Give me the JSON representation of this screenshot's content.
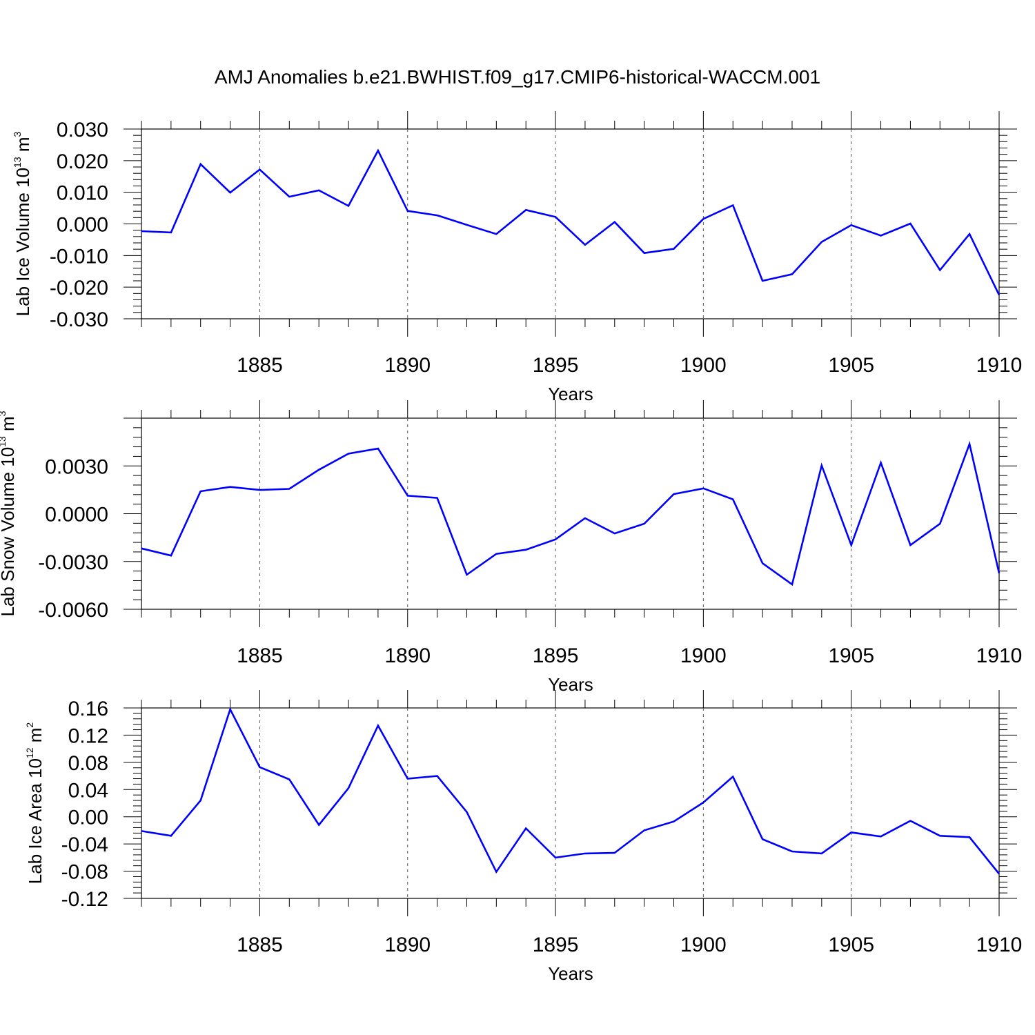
{
  "title": "AMJ Anomalies b.e21.BWHIST.f09_g17.CMIP6-historical-WACCM.001",
  "colors": {
    "line": "#0000ff",
    "axis": "#000000",
    "grid": "#555555"
  },
  "chart_data": [
    {
      "type": "line",
      "xlabel": "Years",
      "ylabel": {
        "prefix": "Lab Ice Volume 10",
        "exponent": "13",
        "unit": " m",
        "unit_exponent": "3"
      },
      "xlim": [
        1881,
        1910
      ],
      "ylim": [
        -0.03,
        0.03
      ],
      "xticks": [
        1885,
        1890,
        1895,
        1900,
        1905,
        1910
      ],
      "xtick_labels": [
        "1885",
        "1890",
        "1895",
        "1900",
        "1905",
        "1910"
      ],
      "yticks": [
        -0.03,
        -0.02,
        -0.01,
        0.0,
        0.01,
        0.02,
        0.03
      ],
      "ytick_labels": [
        "-0.030",
        "-0.020",
        "-0.010",
        "0.000",
        "0.010",
        "0.020",
        "0.030"
      ],
      "grid": "vertical-dashed",
      "series": [
        {
          "x": [
            1881,
            1882,
            1883,
            1884,
            1885,
            1886,
            1887,
            1888,
            1889,
            1890,
            1891,
            1892,
            1893,
            1894,
            1895,
            1896,
            1897,
            1898,
            1899,
            1900,
            1901,
            1902,
            1903,
            1904,
            1905,
            1906,
            1907,
            1908,
            1909,
            1910
          ],
          "values": [
            -0.0023,
            -0.0027,
            0.0189,
            0.0099,
            0.0172,
            0.0086,
            0.0106,
            0.0057,
            0.0232,
            0.0041,
            0.0027,
            -0.0003,
            -0.0032,
            0.0044,
            0.0022,
            -0.0066,
            0.0006,
            -0.0092,
            -0.0079,
            0.0016,
            0.0059,
            -0.018,
            -0.0159,
            -0.0057,
            -0.0004,
            -0.0037,
            0.0001,
            -0.0146,
            -0.0032,
            -0.0225
          ]
        }
      ]
    },
    {
      "type": "line",
      "xlabel": "Years",
      "ylabel": {
        "prefix": "Lab Snow Volume 10",
        "exponent": "13",
        "unit": " m",
        "unit_exponent": "3"
      },
      "xlim": [
        1881,
        1910
      ],
      "ylim": [
        -0.006,
        0.006
      ],
      "xticks": [
        1885,
        1890,
        1895,
        1900,
        1905,
        1910
      ],
      "xtick_labels": [
        "1885",
        "1890",
        "1895",
        "1900",
        "1905",
        "1910"
      ],
      "yticks": [
        -0.006,
        -0.003,
        0.0,
        0.003
      ],
      "ytick_labels": [
        "-0.0060",
        "-0.0030",
        "0.0000",
        "0.0030"
      ],
      "grid": "vertical-dashed",
      "series": [
        {
          "x": [
            1881,
            1882,
            1883,
            1884,
            1885,
            1886,
            1887,
            1888,
            1889,
            1890,
            1891,
            1892,
            1893,
            1894,
            1895,
            1896,
            1897,
            1898,
            1899,
            1900,
            1901,
            1902,
            1903,
            1904,
            1905,
            1906,
            1907,
            1908,
            1909,
            1910
          ],
          "values": [
            -0.00218,
            -0.00263,
            0.00141,
            0.00168,
            0.00149,
            0.00156,
            0.00276,
            0.00377,
            0.00409,
            0.00113,
            0.00099,
            -0.00383,
            -0.00252,
            -0.00226,
            -0.00161,
            -0.00028,
            -0.00124,
            -0.00063,
            0.00123,
            0.00159,
            0.0009,
            -0.00311,
            -0.00444,
            0.00303,
            -0.00197,
            0.0032,
            -0.00197,
            -0.00063,
            0.00438,
            -0.00374
          ]
        }
      ]
    },
    {
      "type": "line",
      "xlabel": "Years",
      "ylabel": {
        "prefix": "Lab Ice Area 10",
        "exponent": "12",
        "unit": " m",
        "unit_exponent": "2"
      },
      "xlim": [
        1881,
        1910
      ],
      "ylim": [
        -0.12,
        0.16
      ],
      "xticks": [
        1885,
        1890,
        1895,
        1900,
        1905,
        1910
      ],
      "xtick_labels": [
        "1885",
        "1890",
        "1895",
        "1900",
        "1905",
        "1910"
      ],
      "yticks": [
        -0.12,
        -0.08,
        -0.04,
        0.0,
        0.04,
        0.08,
        0.12,
        0.16
      ],
      "ytick_labels": [
        "-0.12",
        "-0.08",
        "-0.04",
        "0.00",
        "0.04",
        "0.08",
        "0.12",
        "0.16"
      ],
      "grid": "vertical-dashed",
      "series": [
        {
          "x": [
            1881,
            1882,
            1883,
            1884,
            1885,
            1886,
            1887,
            1888,
            1889,
            1890,
            1891,
            1892,
            1893,
            1894,
            1895,
            1896,
            1897,
            1898,
            1899,
            1900,
            1901,
            1902,
            1903,
            1904,
            1905,
            1906,
            1907,
            1908,
            1909,
            1910
          ],
          "values": [
            -0.021,
            -0.028,
            0.024,
            0.158,
            0.073,
            0.055,
            -0.012,
            0.042,
            0.134,
            0.056,
            0.06,
            0.007,
            -0.081,
            -0.017,
            -0.06,
            -0.054,
            -0.053,
            -0.02,
            -0.007,
            0.021,
            0.059,
            -0.033,
            -0.051,
            -0.054,
            -0.023,
            -0.029,
            -0.006,
            -0.028,
            -0.03,
            -0.084
          ]
        }
      ]
    }
  ]
}
